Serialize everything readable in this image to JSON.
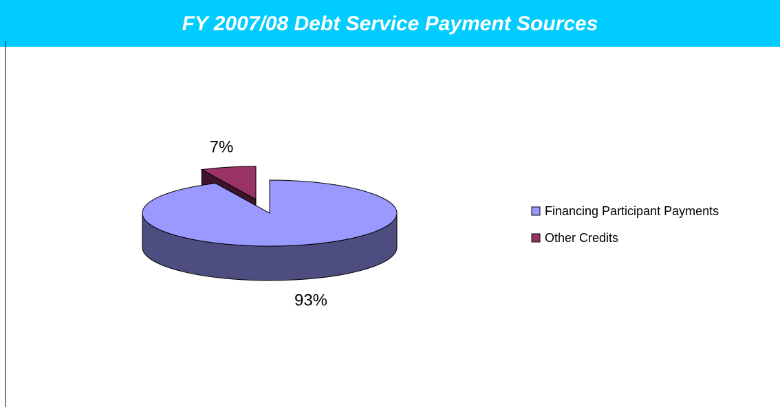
{
  "chart_data": {
    "type": "pie",
    "title": "FY 2007/08 Debt Service Payment Sources",
    "categories": [
      "Financing Participant Payments",
      "Other Credits"
    ],
    "values": [
      93,
      7
    ],
    "value_labels": [
      "93%",
      "7%"
    ],
    "colors": [
      "#9999ff",
      "#993366"
    ],
    "legend": "right"
  }
}
